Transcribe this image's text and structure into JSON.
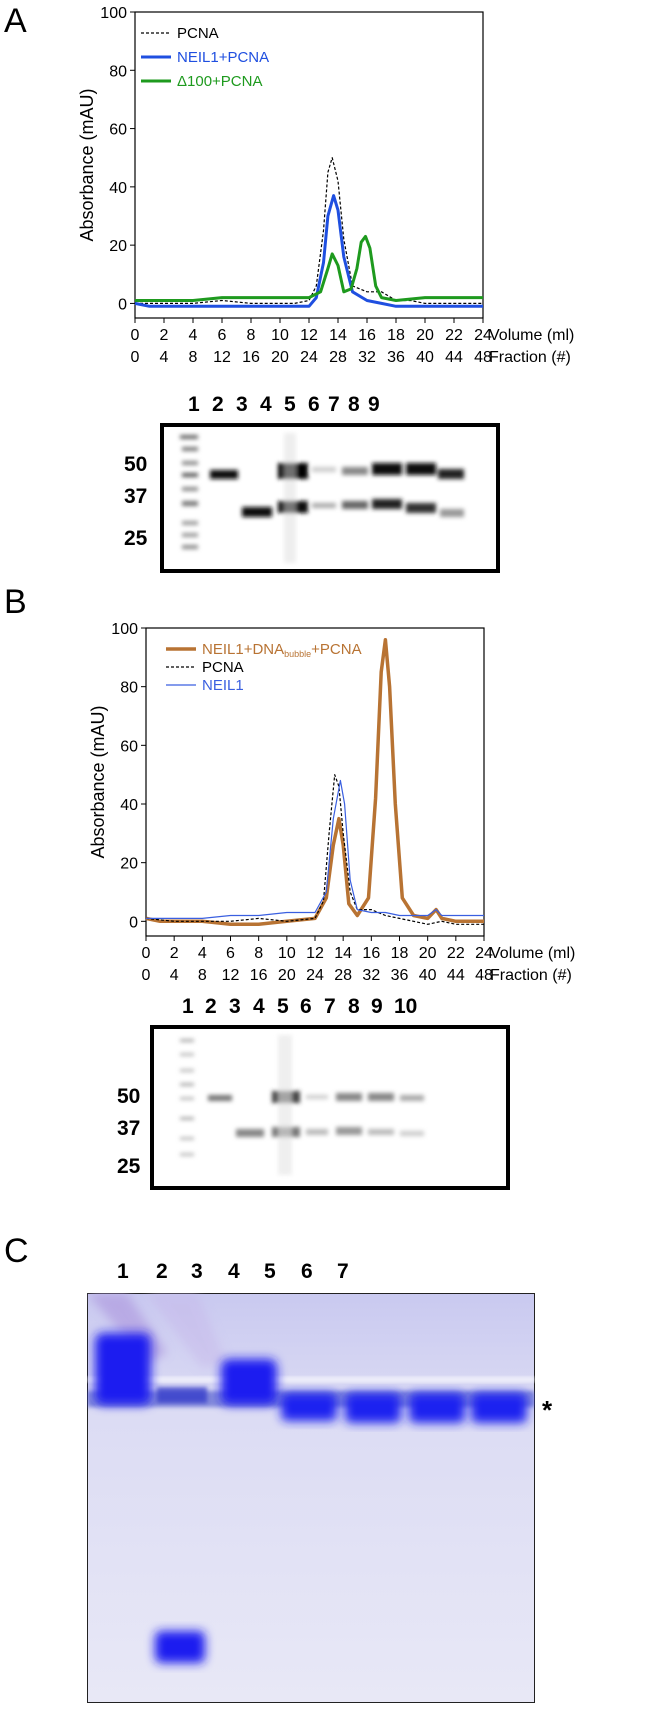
{
  "panels": [
    {
      "letter": "A",
      "chart_data": {
        "type": "line",
        "ylabel": "Absorbance (mAU)",
        "xlabel": "Volume (ml)",
        "x2label": "Fraction (#)",
        "xlim": [
          0,
          24
        ],
        "ylim": [
          -5,
          100
        ],
        "xticks": [
          0,
          2,
          4,
          6,
          8,
          10,
          12,
          14,
          16,
          18,
          20,
          22,
          24
        ],
        "yticks": [
          0,
          20,
          40,
          60,
          80,
          100
        ],
        "fraction_ticks": [
          "0",
          "4",
          "8",
          "12",
          "16",
          "20",
          "24",
          "28",
          "32",
          "36",
          "40",
          "44",
          "48"
        ],
        "legend_position": "top-left",
        "series": [
          {
            "name": "PCNA",
            "color": "#000000",
            "style": "dashed",
            "x": [
              0,
              2,
              4,
              6,
              8,
              10,
              11,
              12,
              12.5,
              13,
              13.3,
              13.6,
              14,
              14.4,
              15,
              16,
              17,
              18,
              19,
              20,
              22,
              24
            ],
            "y": [
              0,
              0,
              0,
              1,
              0,
              0,
              0,
              1,
              6,
              25,
              45,
              50,
              42,
              22,
              6,
              4,
              4,
              1,
              1,
              0,
              0,
              0
            ]
          },
          {
            "name": "NEIL1+PCNA",
            "color": "#1f4fe0",
            "style": "solid",
            "x": [
              0,
              1,
              2,
              4,
              6,
              8,
              10,
              11,
              12,
              12.5,
              13,
              13.3,
              13.7,
              14,
              14.4,
              15,
              16,
              17,
              18,
              20,
              22,
              24
            ],
            "y": [
              0,
              -1,
              -1,
              -1,
              -1,
              -1,
              -1,
              -1,
              -1,
              2,
              14,
              30,
              37,
              32,
              16,
              4,
              1,
              0,
              -1,
              -1,
              -1,
              -1
            ]
          },
          {
            "name": "Δ100+PCNA",
            "color": "#1e9a1e",
            "style": "solid",
            "x": [
              0,
              2,
              4,
              6,
              8,
              10,
              12,
              12.8,
              13.3,
              13.6,
              14,
              14.4,
              14.9,
              15.3,
              15.6,
              15.9,
              16.2,
              16.6,
              17,
              18,
              20,
              22,
              24
            ],
            "y": [
              1,
              1,
              1,
              2,
              2,
              2,
              2,
              4,
              12,
              17,
              13,
              4,
              5,
              12,
              21,
              23,
              19,
              6,
              2,
              1,
              2,
              2,
              2
            ]
          }
        ]
      },
      "gel": {
        "lane_numbers": [
          "1",
          "2",
          "3",
          "4",
          "5",
          "6",
          "7",
          "8",
          "9"
        ],
        "mw_markers": [
          "50",
          "37",
          "25"
        ]
      }
    },
    {
      "letter": "B",
      "chart_data": {
        "type": "line",
        "ylabel": "Absorbance (mAU)",
        "xlabel": "Volume (ml)",
        "x2label": "Fraction (#)",
        "xlim": [
          0,
          24
        ],
        "ylim": [
          -5,
          100
        ],
        "xticks": [
          0,
          2,
          4,
          6,
          8,
          10,
          12,
          14,
          16,
          18,
          20,
          22,
          24
        ],
        "yticks": [
          0,
          20,
          40,
          60,
          80,
          100
        ],
        "fraction_ticks": [
          "0",
          "4",
          "8",
          "12",
          "16",
          "20",
          "24",
          "28",
          "32",
          "36",
          "40",
          "44",
          "48"
        ],
        "legend_position": "top-left",
        "series": [
          {
            "name": "NEIL1+DNAbubble+PCNA",
            "name_main": "NEIL1+DNA",
            "name_sub": "bubble",
            "name_end": "+PCNA",
            "color": "#b87333",
            "style": "solid",
            "x": [
              0,
              1,
              2,
              4,
              6,
              8,
              10,
              12,
              12.8,
              13.3,
              13.7,
              14,
              14.4,
              15,
              15.8,
              16.3,
              16.7,
              17,
              17.3,
              17.7,
              18.2,
              19,
              20,
              20.6,
              21,
              22,
              24
            ],
            "y": [
              1,
              0,
              0,
              0,
              -1,
              -1,
              0,
              1,
              8,
              26,
              35,
              26,
              6,
              2,
              8,
              42,
              85,
              96,
              80,
              40,
              8,
              2,
              1,
              4,
              1,
              0,
              0
            ]
          },
          {
            "name": "PCNA",
            "color": "#000000",
            "style": "dashed",
            "x": [
              0,
              2,
              4,
              6,
              8,
              10,
              12,
              12.6,
              13,
              13.4,
              13.7,
              14,
              14.5,
              15,
              16,
              17,
              18,
              19,
              20,
              21,
              22,
              24
            ],
            "y": [
              1,
              0,
              0,
              0,
              1,
              0,
              1,
              7,
              30,
              50,
              46,
              30,
              10,
              4,
              4,
              2,
              1,
              0,
              -1,
              0,
              -1,
              -1
            ]
          },
          {
            "name": "NEIL1",
            "color": "#3a5fe0",
            "style": "solid",
            "x": [
              0,
              2,
              4,
              6,
              8,
              10,
              12,
              12.8,
              13.3,
              13.8,
              14.1,
              14.5,
              15,
              16,
              17,
              18,
              19,
              20,
              20.6,
              21,
              22,
              24
            ],
            "y": [
              1,
              1,
              1,
              2,
              2,
              3,
              3,
              10,
              35,
              48,
              40,
              14,
              4,
              3,
              3,
              2,
              2,
              2,
              4,
              2,
              2,
              2
            ]
          }
        ]
      },
      "gel": {
        "lane_numbers": [
          "1",
          "2",
          "3",
          "4",
          "5",
          "6",
          "7",
          "8",
          "9",
          "10"
        ],
        "mw_markers": [
          "50",
          "37",
          "25"
        ]
      }
    },
    {
      "letter": "C",
      "gel": {
        "lane_numbers": [
          "1",
          "2",
          "3",
          "4",
          "5",
          "6",
          "7"
        ],
        "marker_symbol": "*"
      }
    }
  ]
}
